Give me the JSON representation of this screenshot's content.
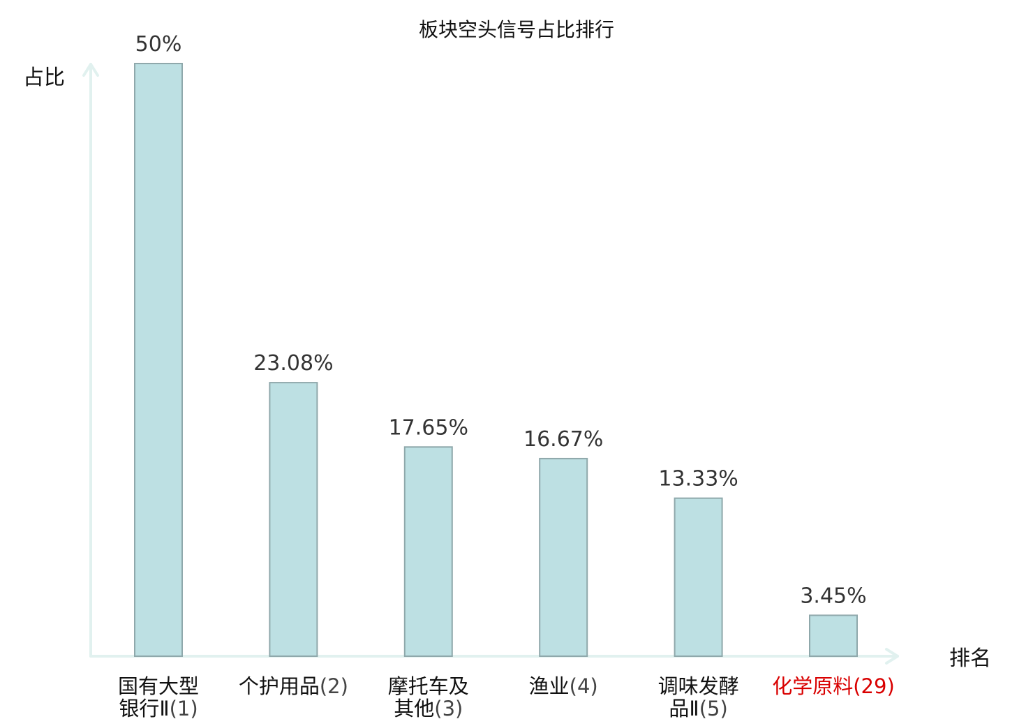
{
  "chart_data": {
    "type": "bar",
    "title": "板块空头信号占比排行",
    "ylabel": "占比",
    "xlabel": "排名",
    "ylim": [
      0,
      50
    ],
    "grid": false,
    "categories": [
      {
        "lines": [
          "国有大型",
          "银行Ⅱ(1)"
        ],
        "name": "国有大型银行Ⅱ",
        "rank": "(1)",
        "highlight": false
      },
      {
        "lines": [
          "个护用品(2)"
        ],
        "name": "个护用品",
        "rank": "(2)",
        "highlight": false
      },
      {
        "lines": [
          "摩托车及",
          "其他(3)"
        ],
        "name": "摩托车及其他",
        "rank": "(3)",
        "highlight": false
      },
      {
        "lines": [
          "渔业(4)"
        ],
        "name": "渔业",
        "rank": "(4)",
        "highlight": false
      },
      {
        "lines": [
          "调味发酵",
          "品Ⅱ(5)"
        ],
        "name": "调味发酵品Ⅱ",
        "rank": "(5)",
        "highlight": false
      },
      {
        "lines": [
          "化学原料(29)"
        ],
        "name": "化学原料",
        "rank": "(29)",
        "highlight": true
      }
    ],
    "values": [
      50,
      23.08,
      17.65,
      16.67,
      13.33,
      3.45
    ],
    "value_labels": [
      "50%",
      "23.08%",
      "17.65%",
      "16.67%",
      "13.33%",
      "3.45%"
    ],
    "colors": {
      "bar_fill": "#bde0e3",
      "bar_stroke": "#8fa8ab",
      "axis": "#e1f1ef",
      "highlight": "#d90000"
    }
  }
}
